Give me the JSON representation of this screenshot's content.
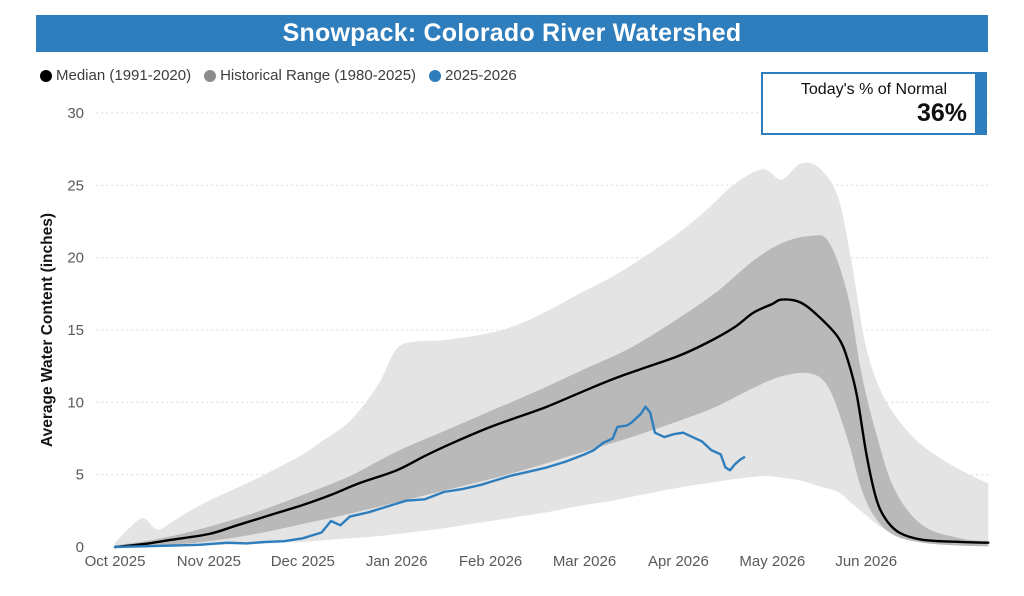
{
  "header": {
    "title": "Snowpack: Colorado River Watershed",
    "bg_color": "#2e7dbc",
    "text_color": "#ffffff"
  },
  "legend": {
    "items": [
      {
        "label": "Median (1991-2020)",
        "color": "#000000"
      },
      {
        "label": "Historical Range (1980-2025)",
        "color": "#8c8c8c"
      },
      {
        "label": "2025-2026",
        "color": "#2e7dbc"
      }
    ]
  },
  "info_box": {
    "label": "Today's % of Normal",
    "value": "36%",
    "accent_color": "#2e7dbc"
  },
  "chart_data": {
    "type": "line",
    "title": "Snowpack: Colorado River Watershed",
    "xlabel": "",
    "ylabel": "Average Water Content (inches)",
    "ylim": [
      0,
      30
    ],
    "xlim_months": [
      -0.2,
      9.3
    ],
    "y_ticks": [
      0,
      5,
      10,
      15,
      20,
      25,
      30
    ],
    "x_ticks": [
      {
        "pos": 0,
        "label": "Oct 2025"
      },
      {
        "pos": 1,
        "label": "Nov 2025"
      },
      {
        "pos": 2,
        "label": "Dec 2025"
      },
      {
        "pos": 3,
        "label": "Jan 2026"
      },
      {
        "pos": 4,
        "label": "Feb 2026"
      },
      {
        "pos": 5,
        "label": "Mar 2026"
      },
      {
        "pos": 6,
        "label": "Apr 2026"
      },
      {
        "pos": 7,
        "label": "May 2026"
      },
      {
        "pos": 8,
        "label": "Jun 2026"
      }
    ],
    "grid": "horizontal-dotted",
    "grid_color": "#d9d9d9",
    "tick_color": "#595959",
    "legend_position": "top-left",
    "bands": [
      {
        "name": "Historical Range (1980-2025) full range",
        "color": "#e4e4e4",
        "x": [
          0,
          0.15,
          0.3,
          0.45,
          0.6,
          0.8,
          1.0,
          1.2,
          1.5,
          1.8,
          2.0,
          2.2,
          2.5,
          2.8,
          3.0,
          3.2,
          3.5,
          4.0,
          4.3,
          4.6,
          5.0,
          5.3,
          5.6,
          6.0,
          6.3,
          6.6,
          6.9,
          7.1,
          7.3,
          7.5,
          7.7,
          7.85,
          8.0,
          8.2,
          8.5,
          8.8,
          9.1,
          9.3
        ],
        "upper": [
          0.3,
          1.3,
          2.0,
          1.2,
          1.7,
          2.5,
          3.2,
          3.8,
          4.7,
          5.7,
          6.4,
          7.3,
          8.7,
          11.2,
          13.7,
          14.2,
          14.3,
          14.8,
          15.4,
          16.3,
          17.7,
          18.7,
          19.9,
          21.7,
          23.3,
          25.1,
          26.1,
          25.4,
          26.5,
          26.2,
          24.2,
          19.5,
          13.8,
          10.2,
          7.6,
          6.1,
          5.0,
          4.4
        ],
        "lower": [
          0,
          0,
          0,
          0,
          0,
          0.05,
          0.1,
          0.15,
          0.2,
          0.3,
          0.35,
          0.45,
          0.6,
          0.75,
          0.9,
          1.05,
          1.3,
          1.8,
          2.1,
          2.4,
          2.9,
          3.2,
          3.6,
          4.1,
          4.4,
          4.7,
          4.9,
          4.8,
          4.6,
          4.2,
          3.8,
          3.0,
          2.2,
          1.2,
          0.5,
          0.2,
          0.1,
          0.05
        ]
      },
      {
        "name": "Historical Range (1980-2025) middle range",
        "color": "#b9b9b9",
        "x": [
          0,
          0.5,
          1.0,
          1.5,
          2.0,
          2.5,
          3.0,
          3.5,
          4.0,
          4.5,
          5.0,
          5.5,
          6.0,
          6.4,
          6.8,
          7.1,
          7.4,
          7.6,
          7.8,
          7.95,
          8.1,
          8.3,
          8.6,
          9.0,
          9.3
        ],
        "upper": [
          0.1,
          0.6,
          1.4,
          2.4,
          3.6,
          4.9,
          6.6,
          8.0,
          9.4,
          10.8,
          12.3,
          13.8,
          15.8,
          17.6,
          19.8,
          21.0,
          21.5,
          21.1,
          17.5,
          12.0,
          8.0,
          4.0,
          1.5,
          0.6,
          0.4
        ],
        "lower": [
          0,
          0.1,
          0.4,
          0.9,
          1.6,
          2.3,
          3.1,
          3.9,
          4.7,
          5.6,
          6.6,
          7.6,
          8.7,
          9.7,
          11.0,
          11.8,
          12.0,
          11.0,
          7.5,
          4.0,
          2.0,
          0.8,
          0.3,
          0.1,
          0.05
        ]
      }
    ],
    "series": [
      {
        "name": "Median (1991-2020)",
        "color": "#000000",
        "width": 2.4,
        "smooth": true,
        "x": [
          0,
          0.3,
          0.6,
          1.0,
          1.3,
          1.6,
          2.0,
          2.3,
          2.6,
          3.0,
          3.3,
          3.6,
          4.0,
          4.3,
          4.6,
          5.0,
          5.3,
          5.6,
          6.0,
          6.3,
          6.6,
          6.8,
          7.0,
          7.1,
          7.3,
          7.5,
          7.7,
          7.8,
          7.9,
          8.0,
          8.1,
          8.2,
          8.35,
          8.6,
          9.0,
          9.3
        ],
        "y": [
          0,
          0.2,
          0.5,
          0.9,
          1.5,
          2.1,
          2.9,
          3.6,
          4.4,
          5.3,
          6.3,
          7.2,
          8.3,
          9.0,
          9.7,
          10.8,
          11.6,
          12.3,
          13.2,
          14.1,
          15.2,
          16.2,
          16.8,
          17.1,
          16.9,
          15.9,
          14.5,
          13.0,
          10.5,
          6.5,
          3.5,
          2.0,
          1.0,
          0.5,
          0.35,
          0.3
        ]
      },
      {
        "name": "2025-2026",
        "color": "#2e7dbc",
        "width": 2.4,
        "smooth": false,
        "x": [
          0,
          0.3,
          0.6,
          0.9,
          1.0,
          1.2,
          1.4,
          1.6,
          1.8,
          2.0,
          2.1,
          2.2,
          2.3,
          2.4,
          2.5,
          2.7,
          2.9,
          3.0,
          3.1,
          3.3,
          3.5,
          3.7,
          3.9,
          4.0,
          4.2,
          4.4,
          4.6,
          4.8,
          5.0,
          5.1,
          5.2,
          5.3,
          5.35,
          5.45,
          5.5,
          5.6,
          5.65,
          5.7,
          5.75,
          5.85,
          5.95,
          6.05,
          6.15,
          6.25,
          6.35,
          6.45,
          6.5,
          6.55,
          6.6,
          6.65,
          6.7
        ],
        "y": [
          0,
          0.05,
          0.1,
          0.15,
          0.2,
          0.3,
          0.25,
          0.35,
          0.4,
          0.6,
          0.8,
          1.0,
          1.8,
          1.5,
          2.1,
          2.4,
          2.8,
          3.0,
          3.2,
          3.3,
          3.8,
          4.0,
          4.3,
          4.5,
          4.9,
          5.2,
          5.5,
          5.9,
          6.4,
          6.7,
          7.2,
          7.5,
          8.3,
          8.4,
          8.6,
          9.2,
          9.7,
          9.3,
          7.9,
          7.6,
          7.8,
          7.9,
          7.6,
          7.3,
          6.7,
          6.4,
          5.5,
          5.3,
          5.7,
          6.0,
          6.2
        ]
      }
    ]
  }
}
